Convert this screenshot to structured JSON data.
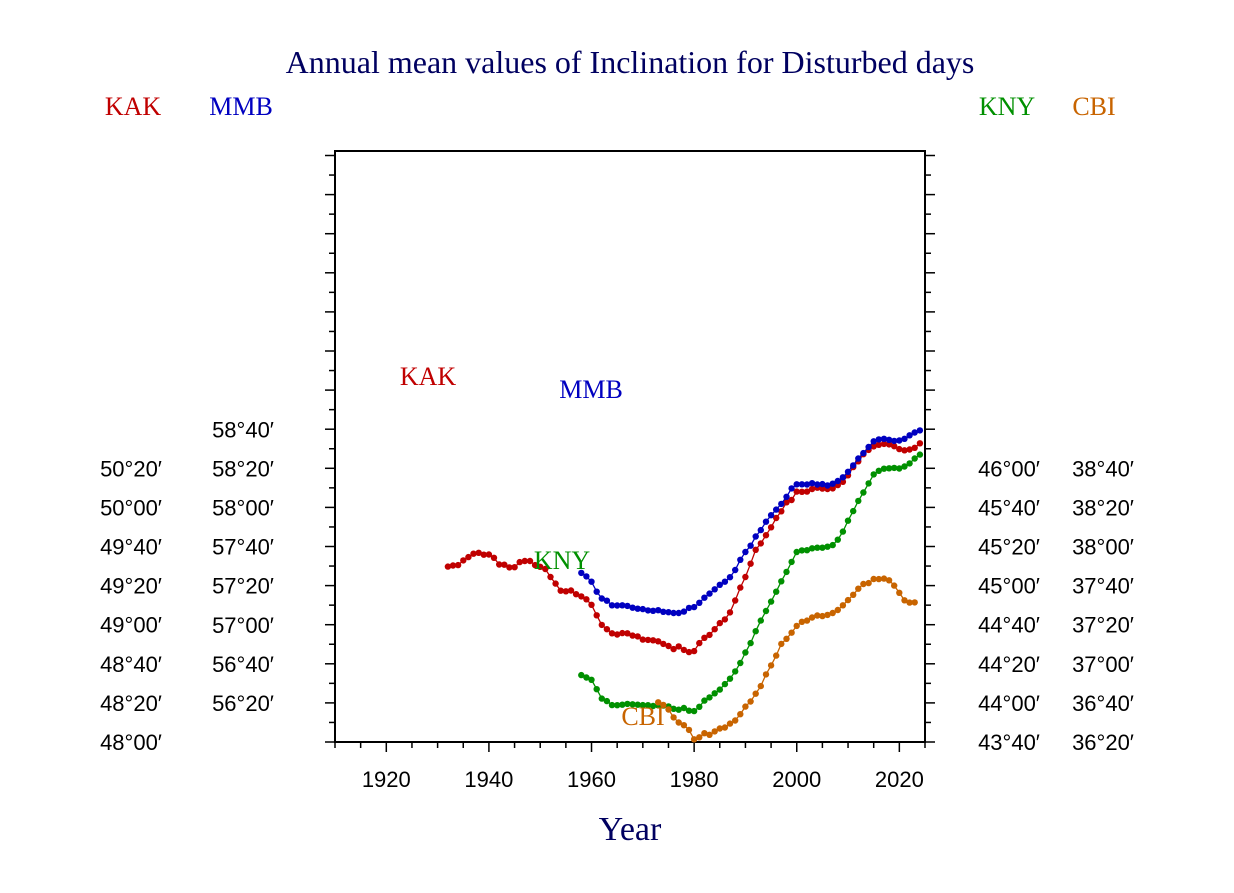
{
  "chart_data": {
    "type": "line",
    "title": "Annual mean values of Inclination for Disturbed days",
    "xlabel": "Year",
    "x_ticks": [
      "1920",
      "1940",
      "1960",
      "1980",
      "2000",
      "2020"
    ],
    "xlim": [
      1910,
      2025
    ],
    "axes": {
      "KAK": {
        "color": "#c00000",
        "ticks": [
          "50°20′",
          "50°00′",
          "49°40′",
          "49°20′",
          "49°00′",
          "48°40′",
          "48°20′",
          "48°00′"
        ]
      },
      "MMB": {
        "color": "#0000c0",
        "ticks": [
          "58°40′",
          "58°20′",
          "58°00′",
          "57°40′",
          "57°20′",
          "57°00′",
          "56°40′",
          "56°20′"
        ]
      },
      "KNY": {
        "color": "#009000",
        "ticks": [
          "46°00′",
          "45°40′",
          "45°20′",
          "45°00′",
          "44°40′",
          "44°20′",
          "44°00′",
          "43°40′"
        ]
      },
      "CBI": {
        "color": "#c86400",
        "ticks": [
          "38°40′",
          "38°20′",
          "38°00′",
          "37°40′",
          "37°20′",
          "37°00′",
          "36°40′",
          "36°20′"
        ]
      }
    },
    "series": [
      {
        "name": "KAK",
        "color": "#c00000",
        "label": "KAK",
        "x": [
          1932,
          1933,
          1934,
          1935,
          1936,
          1937,
          1938,
          1939,
          1940,
          1941,
          1942,
          1943,
          1944,
          1945,
          1946,
          1947,
          1948,
          1949,
          1950,
          1951,
          1952,
          1953,
          1954,
          1955,
          1956,
          1957,
          1958,
          1959,
          1960,
          1961,
          1962,
          1963,
          1964,
          1965,
          1966,
          1967,
          1968,
          1969,
          1970,
          1971,
          1972,
          1973,
          1974,
          1975,
          1976,
          1977,
          1978,
          1979,
          1980,
          1981,
          1982,
          1983,
          1984,
          1985,
          1986,
          1987,
          1988,
          1989,
          1990,
          1991,
          1992,
          1993,
          1994,
          1995,
          1996,
          1997,
          1998,
          1999,
          2000,
          2001,
          2002,
          2003,
          2004,
          2005,
          2006,
          2007,
          2008,
          2009,
          2010,
          2011,
          2012,
          2013,
          2014,
          2015,
          2016,
          2017,
          2018,
          2019,
          2020,
          2021,
          2022,
          2023,
          2024
        ],
        "y": [
          2969.7,
          2970.3,
          2970.5,
          2972.9,
          2974.6,
          2976.3,
          2976.8,
          2975.8,
          2975.9,
          2974.2,
          2970.8,
          2970.7,
          2969.3,
          2969.4,
          2972.0,
          2972.6,
          2972.6,
          2970.5,
          2969.6,
          2968.5,
          2964.4,
          2961.0,
          2957.4,
          2957.1,
          2957.5,
          2955.6,
          2954.5,
          2953.0,
          2950.2,
          2944.8,
          2939.9,
          2937.7,
          2935.6,
          2935.0,
          2935.7,
          2935.6,
          2934.4,
          2934.0,
          2932.4,
          2932.2,
          2932.0,
          2931.5,
          2930.2,
          2929.1,
          2927.5,
          2928.9,
          2927.1,
          2926.0,
          2926.5,
          2930.6,
          2933.3,
          2934.8,
          2937.7,
          2940.8,
          2942.7,
          2946.3,
          2952.4,
          2959.0,
          2964.4,
          2971.2,
          2978.3,
          2981.6,
          2985.8,
          2989.8,
          2994.6,
          2998.0,
          3002.6,
          3003.8,
          3008.1,
          3008.0,
          3008.1,
          3009.4,
          3010.1,
          3009.6,
          3009.4,
          3009.7,
          3011.4,
          3013.1,
          3016.4,
          3020.6,
          3023.6,
          3027.2,
          3029.4,
          3031.2,
          3032.0,
          3032.5,
          3032.2,
          3031.3,
          3029.8,
          3029.2,
          3029.6,
          3030.5,
          3032.8
        ]
      },
      {
        "name": "MMB",
        "color": "#0000c0",
        "label": "MMB",
        "x": [
          1958,
          1959,
          1960,
          1961,
          1962,
          1963,
          1964,
          1965,
          1966,
          1967,
          1968,
          1969,
          1970,
          1971,
          1972,
          1973,
          1974,
          1975,
          1976,
          1977,
          1978,
          1979,
          1980,
          1981,
          1982,
          1983,
          1984,
          1985,
          1986,
          1987,
          1988,
          1989,
          1990,
          1991,
          1992,
          1993,
          1994,
          1995,
          1996,
          1997,
          1998,
          1999,
          2000,
          2001,
          2002,
          2003,
          2004,
          2005,
          2006,
          2007,
          2008,
          2009,
          2010,
          2011,
          2012,
          2013,
          2014,
          2015,
          2016,
          2017,
          2018,
          2019,
          2020,
          2021,
          2022,
          2023,
          2024
        ],
        "y": [
          3446.5,
          3444.7,
          3442.0,
          3436.9,
          3433.4,
          3432.3,
          3429.9,
          3429.8,
          3429.9,
          3429.6,
          3428.7,
          3428.2,
          3428.0,
          3427.3,
          3427.1,
          3427.4,
          3426.6,
          3426.4,
          3426.0,
          3426.0,
          3426.7,
          3428.6,
          3429.0,
          3431.2,
          3433.8,
          3435.9,
          3438.1,
          3440.4,
          3442.0,
          3444.3,
          3448.0,
          3453.2,
          3457.2,
          3460.4,
          3465.1,
          3468.4,
          3472.7,
          3476.0,
          3478.9,
          3481.8,
          3485.4,
          3489.7,
          3491.8,
          3491.8,
          3491.7,
          3492.4,
          3491.7,
          3491.9,
          3491.2,
          3492.1,
          3493.5,
          3495.4,
          3498.2,
          3501.5,
          3505.0,
          3507.8,
          3510.9,
          3513.8,
          3514.8,
          3515.1,
          3514.6,
          3514.0,
          3514.2,
          3515.1,
          3516.9,
          3518.3,
          3519.4
        ]
      },
      {
        "name": "KNY",
        "color": "#009000",
        "label": "KNY",
        "x": [
          1958,
          1959,
          1960,
          1961,
          1962,
          1963,
          1964,
          1965,
          1966,
          1967,
          1968,
          1969,
          1970,
          1971,
          1972,
          1973,
          1974,
          1975,
          1976,
          1977,
          1978,
          1979,
          1980,
          1981,
          1982,
          1983,
          1984,
          1985,
          1986,
          1987,
          1988,
          1989,
          1990,
          1991,
          1992,
          1993,
          1994,
          1995,
          1996,
          1997,
          1998,
          1999,
          2000,
          2001,
          2002,
          2003,
          2004,
          2005,
          2006,
          2007,
          2008,
          2009,
          2010,
          2011,
          2012,
          2013,
          2014,
          2015,
          2016,
          2017,
          2018,
          2019,
          2020,
          2021,
          2022,
          2023,
          2024
        ],
        "y": [
          2654.2,
          2653.0,
          2651.8,
          2647.0,
          2642.2,
          2640.9,
          2638.9,
          2638.8,
          2639.1,
          2639.5,
          2639.3,
          2639.1,
          2638.9,
          2638.8,
          2638.4,
          2638.7,
          2638.6,
          2638.2,
          2637.0,
          2636.5,
          2637.4,
          2636.0,
          2635.8,
          2638.0,
          2641.2,
          2642.8,
          2644.9,
          2646.8,
          2649.6,
          2652.4,
          2656.1,
          2660.4,
          2665.8,
          2670.6,
          2676.7,
          2682.1,
          2687.0,
          2691.8,
          2696.9,
          2702.2,
          2707.0,
          2712.1,
          2717.2,
          2718.0,
          2718.1,
          2719.1,
          2719.4,
          2719.4,
          2719.9,
          2720.7,
          2723.5,
          2727.6,
          2733.2,
          2738.1,
          2743.3,
          2747.6,
          2752.3,
          2756.9,
          2758.7,
          2759.8,
          2760.0,
          2760.2,
          2759.9,
          2760.9,
          2762.5,
          2765.0,
          2767.0
        ]
      },
      {
        "name": "CBI",
        "color": "#c86400",
        "label": "CBI",
        "x": [
          1973,
          1974,
          1975,
          1976,
          1977,
          1978,
          1979,
          1980,
          1981,
          1982,
          1983,
          1984,
          1985,
          1986,
          1987,
          1988,
          1989,
          1990,
          1991,
          1992,
          1993,
          1994,
          1995,
          1996,
          1997,
          1998,
          1999,
          2000,
          2001,
          2002,
          2003,
          2004,
          2005,
          2006,
          2007,
          2008,
          2009,
          2010,
          2011,
          2012,
          2013,
          2014,
          2015,
          2016,
          2017,
          2018,
          2019,
          2020,
          2021,
          2022,
          2023
        ],
        "y": [
          2200.3,
          2199.0,
          2196.6,
          2192.6,
          2190.0,
          2188.6,
          2186.2,
          2181.4,
          2182.4,
          2184.5,
          2183.7,
          2185.4,
          2186.9,
          2187.4,
          2189.4,
          2191.0,
          2194.2,
          2198.1,
          2200.7,
          2204.7,
          2208.6,
          2214.6,
          2219.2,
          2224.2,
          2230.2,
          2232.8,
          2235.9,
          2239.4,
          2241.5,
          2242.1,
          2243.7,
          2244.7,
          2244.4,
          2245.0,
          2246.0,
          2247.5,
          2249.9,
          2252.6,
          2255.3,
          2258.4,
          2260.8,
          2261.3,
          2263.4,
          2263.3,
          2263.6,
          2262.7,
          2260.0,
          2256.3,
          2252.5,
          2251.3,
          2251.4
        ]
      }
    ]
  }
}
